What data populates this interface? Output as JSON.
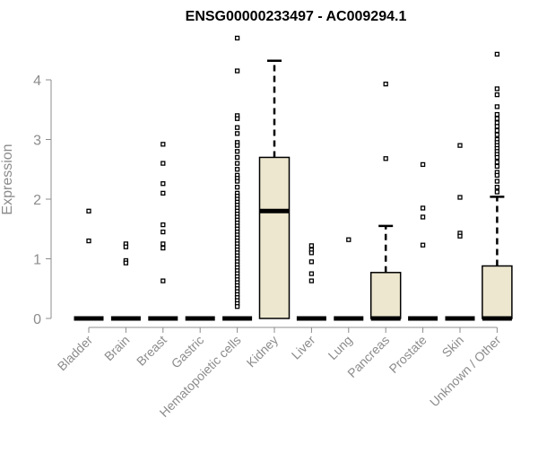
{
  "chart_data": {
    "type": "box",
    "title": "ENSG00000233497 - AC009294.1",
    "xlabel": "",
    "ylabel": "Expression",
    "ylim": [
      0,
      4.5
    ],
    "yticks": [
      0,
      1,
      2,
      3,
      4
    ],
    "grid": false,
    "legend": "none",
    "colors": {
      "box_fill": "#ede7cf",
      "stroke": "#000000",
      "axis_text": "#8c8c8c"
    },
    "categories": [
      "Bladder",
      "Brain",
      "Breast",
      "Gastric",
      "Hematopoietic cells",
      "Kidney",
      "Liver",
      "Lung",
      "Pancreas",
      "Prostate",
      "Skin",
      "Unknown / Other"
    ],
    "boxes": [
      {
        "category": "Bladder",
        "q1": 0,
        "median": 0,
        "q3": 0,
        "whisker_low": 0,
        "whisker_high": 0,
        "outliers": [
          1.8,
          1.3
        ]
      },
      {
        "category": "Brain",
        "q1": 0,
        "median": 0,
        "q3": 0,
        "whisker_low": 0,
        "whisker_high": 0,
        "outliers": [
          1.25,
          1.2,
          0.97,
          0.93
        ]
      },
      {
        "category": "Breast",
        "q1": 0,
        "median": 0,
        "q3": 0,
        "whisker_low": 0,
        "whisker_high": 0,
        "outliers": [
          2.92,
          2.6,
          2.26,
          2.1,
          1.57,
          1.45,
          1.25,
          1.18,
          0.63
        ]
      },
      {
        "category": "Gastric",
        "q1": 0,
        "median": 0,
        "q3": 0,
        "whisker_low": 0,
        "whisker_high": 0,
        "outliers": []
      },
      {
        "category": "Hematopoietic cells",
        "q1": 0,
        "median": 0,
        "q3": 0,
        "whisker_low": 0,
        "whisker_high": 0,
        "outliers": [
          4.7,
          4.15,
          3.4,
          3.35,
          3.2,
          3.1,
          2.95,
          2.9,
          2.8,
          2.7,
          2.6,
          2.5,
          2.4,
          2.35,
          2.3,
          2.2,
          2.1,
          2.05,
          2.0,
          1.95,
          1.9,
          1.85,
          1.8,
          1.75,
          1.7,
          1.65,
          1.6,
          1.55,
          1.5,
          1.45,
          1.4,
          1.35,
          1.3,
          1.25,
          1.2,
          1.15,
          1.1,
          1.05,
          1.0,
          0.95,
          0.9,
          0.85,
          0.8,
          0.75,
          0.7,
          0.65,
          0.6,
          0.55,
          0.5,
          0.45,
          0.4,
          0.35,
          0.3,
          0.25,
          0.2
        ]
      },
      {
        "category": "Kidney",
        "q1": 0,
        "median": 1.8,
        "q3": 2.7,
        "whisker_low": 0,
        "whisker_high": 4.32,
        "outliers": []
      },
      {
        "category": "Liver",
        "q1": 0,
        "median": 0,
        "q3": 0,
        "whisker_low": 0,
        "whisker_high": 0,
        "outliers": [
          1.22,
          1.15,
          1.1,
          0.95,
          0.75,
          0.63
        ]
      },
      {
        "category": "Lung",
        "q1": 0,
        "median": 0,
        "q3": 0,
        "whisker_low": 0,
        "whisker_high": 0,
        "outliers": [
          1.32
        ]
      },
      {
        "category": "Pancreas",
        "q1": 0,
        "median": 0,
        "q3": 0.77,
        "whisker_low": 0,
        "whisker_high": 1.55,
        "outliers": [
          3.93,
          2.68
        ]
      },
      {
        "category": "Prostate",
        "q1": 0,
        "median": 0,
        "q3": 0,
        "whisker_low": 0,
        "whisker_high": 0,
        "outliers": [
          2.58,
          1.85,
          1.7,
          1.23
        ]
      },
      {
        "category": "Skin",
        "q1": 0,
        "median": 0,
        "q3": 0,
        "whisker_low": 0,
        "whisker_high": 0,
        "outliers": [
          2.9,
          2.03,
          1.43,
          1.38
        ]
      },
      {
        "category": "Unknown / Other",
        "q1": 0,
        "median": 0,
        "q3": 0.88,
        "whisker_low": 0,
        "whisker_high": 2.04,
        "outliers": [
          4.43,
          3.85,
          3.75,
          3.55,
          3.42,
          3.35,
          3.28,
          3.22,
          3.15,
          3.08,
          3.0,
          2.95,
          2.9,
          2.85,
          2.8,
          2.75,
          2.7,
          2.62,
          2.55,
          2.45,
          2.4,
          2.3,
          2.2,
          2.12
        ]
      }
    ]
  }
}
